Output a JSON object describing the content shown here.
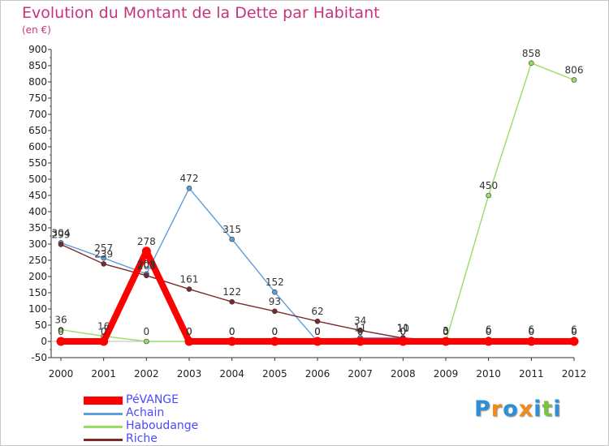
{
  "title": "Evolution du Montant de la Dette par Habitant",
  "subtitle": "(en €)",
  "logo": {
    "text": "Proxiti",
    "colors": [
      "#2f8fd6",
      "#f08a1c",
      "#2f8fd6",
      "#f08a1c",
      "#2f8fd6",
      "#7cc242",
      "#2f8fd6"
    ]
  },
  "chart_data": {
    "type": "line",
    "title": "Evolution du Montant de la Dette par Habitant",
    "ylabel": "(en €)",
    "xlabel": "",
    "x": [
      "2000",
      "2001",
      "2002",
      "2003",
      "2004",
      "2005",
      "2006",
      "2007",
      "2008",
      "2009",
      "2010",
      "2011",
      "2012"
    ],
    "ylim": [
      -50,
      900
    ],
    "yticks": [
      -50,
      0,
      50,
      100,
      150,
      200,
      250,
      300,
      350,
      400,
      450,
      500,
      550,
      600,
      650,
      700,
      750,
      800,
      850,
      900
    ],
    "grid": false,
    "legend_position": "bottom-left",
    "series": [
      {
        "name": "PéVANGE",
        "color": "#ff0000",
        "values": [
          0,
          0,
          278,
          0,
          0,
          0,
          0,
          0,
          0,
          0,
          0,
          0,
          0
        ]
      },
      {
        "name": "Achain",
        "color": "#5e9fd8",
        "values": [
          304,
          257,
          208,
          472,
          315,
          152,
          0,
          11,
          11,
          0,
          0,
          0,
          0
        ]
      },
      {
        "name": "Haboudange",
        "color": "#99dd66",
        "values": [
          36,
          16,
          0,
          0,
          0,
          0,
          0,
          0,
          0,
          0,
          450,
          858,
          806
        ]
      },
      {
        "name": "Riche",
        "color": "#7a2a2a",
        "values": [
          299,
          239,
          203,
          161,
          122,
          93,
          62,
          34,
          10,
          3,
          6,
          6,
          6
        ]
      }
    ]
  }
}
